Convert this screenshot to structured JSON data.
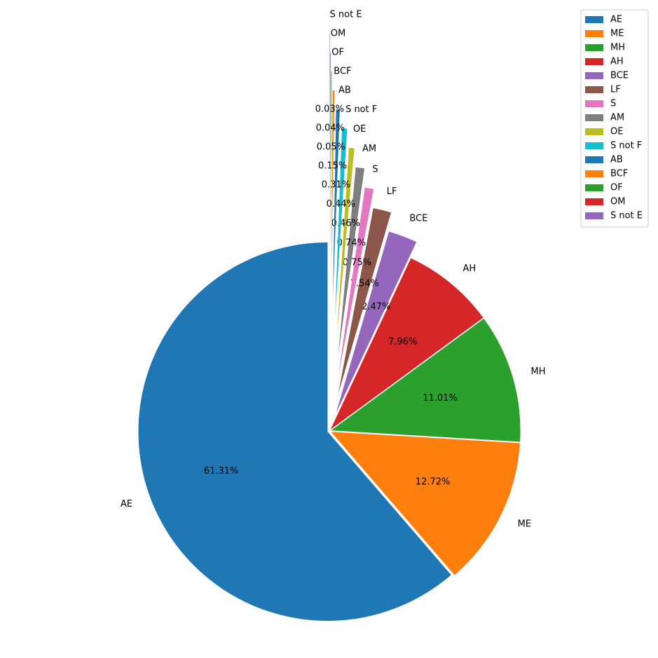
{
  "chart_data": {
    "type": "pie",
    "categories": [
      "AE",
      "ME",
      "MH",
      "AH",
      "BCE",
      "LF",
      "S",
      "AM",
      "OE",
      "S not F",
      "AB",
      "BCF",
      "OF",
      "OM",
      "S not E"
    ],
    "values": [
      61.31,
      12.72,
      11.01,
      7.96,
      2.47,
      1.54,
      0.75,
      0.74,
      0.46,
      0.44,
      0.31,
      0.15,
      0.05,
      0.04,
      0.03
    ],
    "value_labels": [
      "61.31%",
      "12.72%",
      "11.01%",
      "7.96%",
      "2.47%",
      "1.54%",
      "0.75%",
      "0.74%",
      "0.46%",
      "0.44%",
      "0.31%",
      "0.15%",
      "0.05%",
      "0.04%",
      "0.03%"
    ],
    "colors": [
      "#1f77b4",
      "#ff7f0e",
      "#2ca02c",
      "#d62728",
      "#9467bd",
      "#8c564b",
      "#e377c2",
      "#7f7f7f",
      "#bcbd22",
      "#17becf",
      "#1f77b4",
      "#ff7f0e",
      "#2ca02c",
      "#d62728",
      "#9467bd"
    ],
    "legend": "upper right"
  }
}
